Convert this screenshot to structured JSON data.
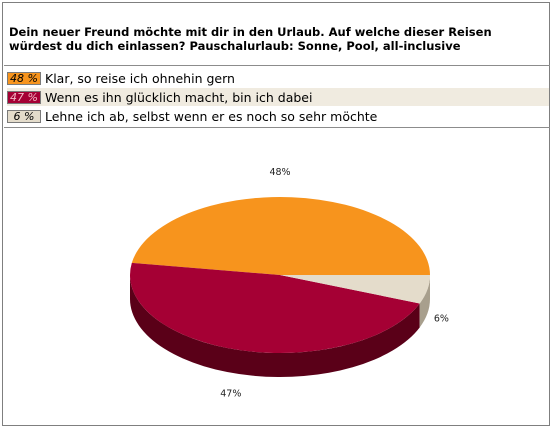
{
  "question": "Dein neuer Freund möchte mit dir in den Urlaub. Auf welche dieser Reisen würdest du dich einlassen? Pauschalurlaub: Sonne, Pool, all-inclusive",
  "answers": [
    {
      "pct": "48 %",
      "text": "Klar, so reise ich ohnehin gern",
      "color": "#f7941d",
      "text_color": "#000000"
    },
    {
      "pct": "47 %",
      "text": "Wenn es ihn glücklich macht, bin ich dabei",
      "color": "#a50034",
      "text_color": "#f3b9c6"
    },
    {
      "pct": "6 %",
      "text": "Lehne ich ab, selbst wenn er es noch so sehr möchte",
      "color": "#e4dccb",
      "text_color": "#000000"
    }
  ],
  "chart_data": {
    "type": "pie",
    "categories": [
      "Klar, so reise ich ohnehin gern",
      "Wenn es ihn glücklich macht, bin ich dabei",
      "Lehne ich ab, selbst wenn er es noch so sehr möchte"
    ],
    "values": [
      48,
      47,
      6
    ],
    "labels": [
      "48%",
      "47%",
      "6%"
    ],
    "colors": [
      "#f7941d",
      "#a50034",
      "#e4dccb"
    ],
    "side_colors": [
      "#b0620a",
      "#5a0018",
      "#a89f8d"
    ]
  }
}
